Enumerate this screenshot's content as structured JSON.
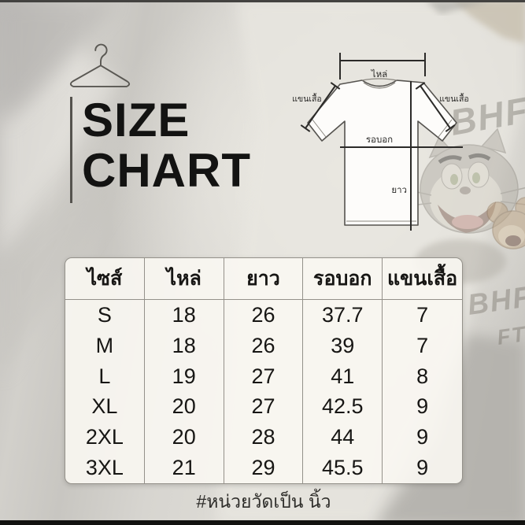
{
  "header": {
    "title_line1": "SIZE",
    "title_line2": "CHART"
  },
  "diagram": {
    "label_shoulder": "ไหล่",
    "label_sleeve_left": "แขนเสื้อ",
    "label_sleeve_right": "แขนเสื้อ",
    "label_chest": "รอบอก",
    "label_length": "ยาว"
  },
  "background": {
    "print_text_top": "BHF",
    "print_text_mid": "BHF",
    "print_text_bottom": "FT"
  },
  "size_table": {
    "columns": [
      "ไซส์",
      "ไหล่",
      "ยาว",
      "รอบอก",
      "แขนเสื้อ"
    ],
    "rows": [
      [
        "S",
        "18",
        "26",
        "37.7",
        "7"
      ],
      [
        "M",
        "18",
        "26",
        "39",
        "7"
      ],
      [
        "L",
        "19",
        "27",
        "41",
        "8"
      ],
      [
        "XL",
        "20",
        "27",
        "42.5",
        "9"
      ],
      [
        "2XL",
        "20",
        "28",
        "44",
        "9"
      ],
      [
        "3XL",
        "21",
        "29",
        "45.5",
        "9"
      ]
    ]
  },
  "footnote": "#หน่วยวัดเป็น นิ้ว",
  "chart_data": {
    "type": "table",
    "title": "SIZE CHART",
    "columns": [
      "ไซส์",
      "ไหล่",
      "ยาว",
      "รอบอก",
      "แขนเสื้อ"
    ],
    "rows": [
      [
        "S",
        18,
        26,
        37.7,
        7
      ],
      [
        "M",
        18,
        26,
        39,
        7
      ],
      [
        "L",
        19,
        27,
        41,
        8
      ],
      [
        "XL",
        20,
        27,
        42.5,
        9
      ],
      [
        "2XL",
        20,
        28,
        44,
        9
      ],
      [
        "3XL",
        21,
        29,
        45.5,
        9
      ]
    ],
    "note": "#หน่วยวัดเป็น นิ้ว"
  }
}
